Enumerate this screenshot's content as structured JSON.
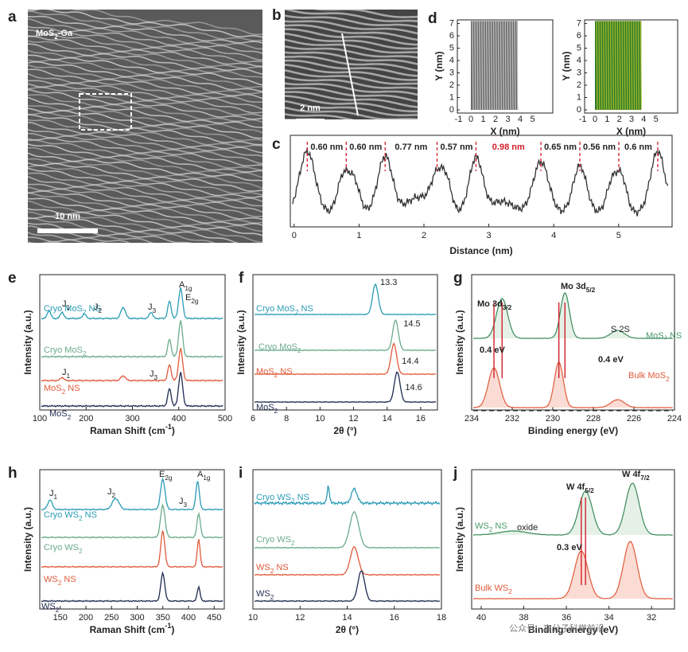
{
  "panel_labels": [
    "a",
    "b",
    "c",
    "d",
    "e",
    "f",
    "g",
    "h",
    "i",
    "j"
  ],
  "a": {
    "label": {
      "t1": "MoS",
      "sub1": "2",
      "t2": "-Ga"
    },
    "scale": "10 nm"
  },
  "b": {
    "scale": "2 nm"
  },
  "c": {
    "xlabel": "Distance (nm)",
    "xticks": [
      "0",
      "1",
      "2",
      "3",
      "4",
      "5"
    ],
    "spacings": [
      "0.60 nm",
      "0.60 nm",
      "0.77 nm",
      "0.57 nm",
      "0.98 nm",
      "0.65 nm",
      "0.56 nm",
      "0.6 nm"
    ]
  },
  "d": {
    "xlabel": "X (nm)",
    "ylabel": "Y (nm)",
    "xticks": [
      "-1",
      "0",
      "1",
      "2",
      "3",
      "4",
      "5"
    ],
    "yticks": [
      "0",
      "1",
      "2",
      "3",
      "4",
      "5",
      "6",
      "7"
    ]
  },
  "e": {
    "ylabel": "Intensity (a.u.)",
    "xlabel": {
      "t1": "Raman Shift (cm",
      "sup1": "-1",
      "t2": ")"
    },
    "xticks": [
      "100",
      "200",
      "300",
      "400",
      "500"
    ],
    "curves": [
      {
        "t1": "Cryo MoS",
        "sub1": "2",
        "t2": " NS"
      },
      {
        "t1": "Cryo MoS",
        "sub1": "2"
      },
      {
        "t1": "MoS",
        "sub1": "2",
        "t2": " NS"
      },
      {
        "t1": "MoS",
        "sub1": "2"
      }
    ],
    "peaks": [
      {
        "t1": "J",
        "sub1": "1"
      },
      {
        "t1": "J",
        "sub1": "2"
      },
      {
        "t1": "J",
        "sub1": "3"
      },
      {
        "t1": "E",
        "sub1": "2g"
      },
      {
        "t1": "A",
        "sub1": "1g"
      },
      {
        "t1": "J",
        "sub1": "1"
      },
      {
        "t1": "J",
        "sub1": "3"
      }
    ]
  },
  "f": {
    "ylabel": "Intensity (a.u.)",
    "xlabel": "2θ (°)",
    "xticks": [
      "6",
      "8",
      "10",
      "12",
      "14",
      "16"
    ],
    "curves": [
      {
        "t1": "Cryo MoS",
        "sub1": "2",
        "t2": " NS"
      },
      {
        "t1": "Cryo MoS",
        "sub1": "2"
      },
      {
        "t1": "MoS",
        "sub1": "2",
        "t2": " NS"
      },
      {
        "t1": "MoS",
        "sub1": "2"
      }
    ],
    "peaks": [
      "13.3",
      "14.5",
      "14.4",
      "14.6"
    ]
  },
  "g": {
    "ylabel": "Intensity (a.u.)",
    "xlabel": "Binding energy (eV)",
    "xticks": [
      "234",
      "232",
      "230",
      "228",
      "226",
      "224"
    ],
    "labels": [
      {
        "t1": "Mo 3d",
        "sub1": "3/2"
      },
      {
        "t1": "Mo 3d",
        "sub1": "5/2"
      },
      "S 2S",
      "MoS₂ NS",
      "0.4 eV",
      "0.4 eV",
      {
        "t1": "Bulk MoS",
        "sub1": "2"
      }
    ]
  },
  "h": {
    "ylabel": "Intensity (a.u.)",
    "xlabel": {
      "t1": "Raman Shift (cm",
      "sup1": "-1",
      "t2": ")"
    },
    "xticks": [
      "150",
      "200",
      "250",
      "300",
      "350",
      "400",
      "450"
    ],
    "curves": [
      {
        "t1": "Cryo WS",
        "sub1": "2",
        "t2": " NS"
      },
      {
        "t1": "Cryo WS",
        "sub1": "2"
      },
      {
        "t1": "WS",
        "sub1": "2",
        "t2": " NS"
      },
      {
        "t1": "WS",
        "sub1": "2"
      }
    ],
    "peaks": [
      {
        "t1": "J",
        "sub1": "1"
      },
      {
        "t1": "J",
        "sub1": "2"
      },
      {
        "t1": "E",
        "sub1": "2g"
      },
      {
        "t1": "A",
        "sub1": "1g"
      },
      {
        "t1": "J",
        "sub1": "3"
      }
    ]
  },
  "i": {
    "xlabel": "2θ (°)",
    "xticks": [
      "10",
      "12",
      "14",
      "16",
      "18"
    ],
    "curves": [
      {
        "t1": "Cryo WS",
        "sub1": "2",
        "t2": " NS"
      },
      {
        "t1": "Cryo WS",
        "sub1": "2"
      },
      {
        "t1": "WS",
        "sub1": "2",
        "t2": " NS"
      },
      {
        "t1": "WS",
        "sub1": "2"
      }
    ]
  },
  "j": {
    "ylabel": "Intensity (a.u.)",
    "xlabel": "Binding energy (eV)",
    "xticks": [
      "40",
      "38",
      "36",
      "34",
      "32"
    ],
    "labels": [
      {
        "t1": "W 4f",
        "sub1": "5/2"
      },
      {
        "t1": "W 4f",
        "sub1": "7/2"
      },
      {
        "t1": "WS",
        "sub1": "2",
        "t2": " NS"
      },
      "oxide",
      "0.3 eV",
      {
        "t1": "Bulk WS",
        "sub1": "2"
      }
    ]
  },
  "watermark": "公众号 · 高分子科学前沿"
}
